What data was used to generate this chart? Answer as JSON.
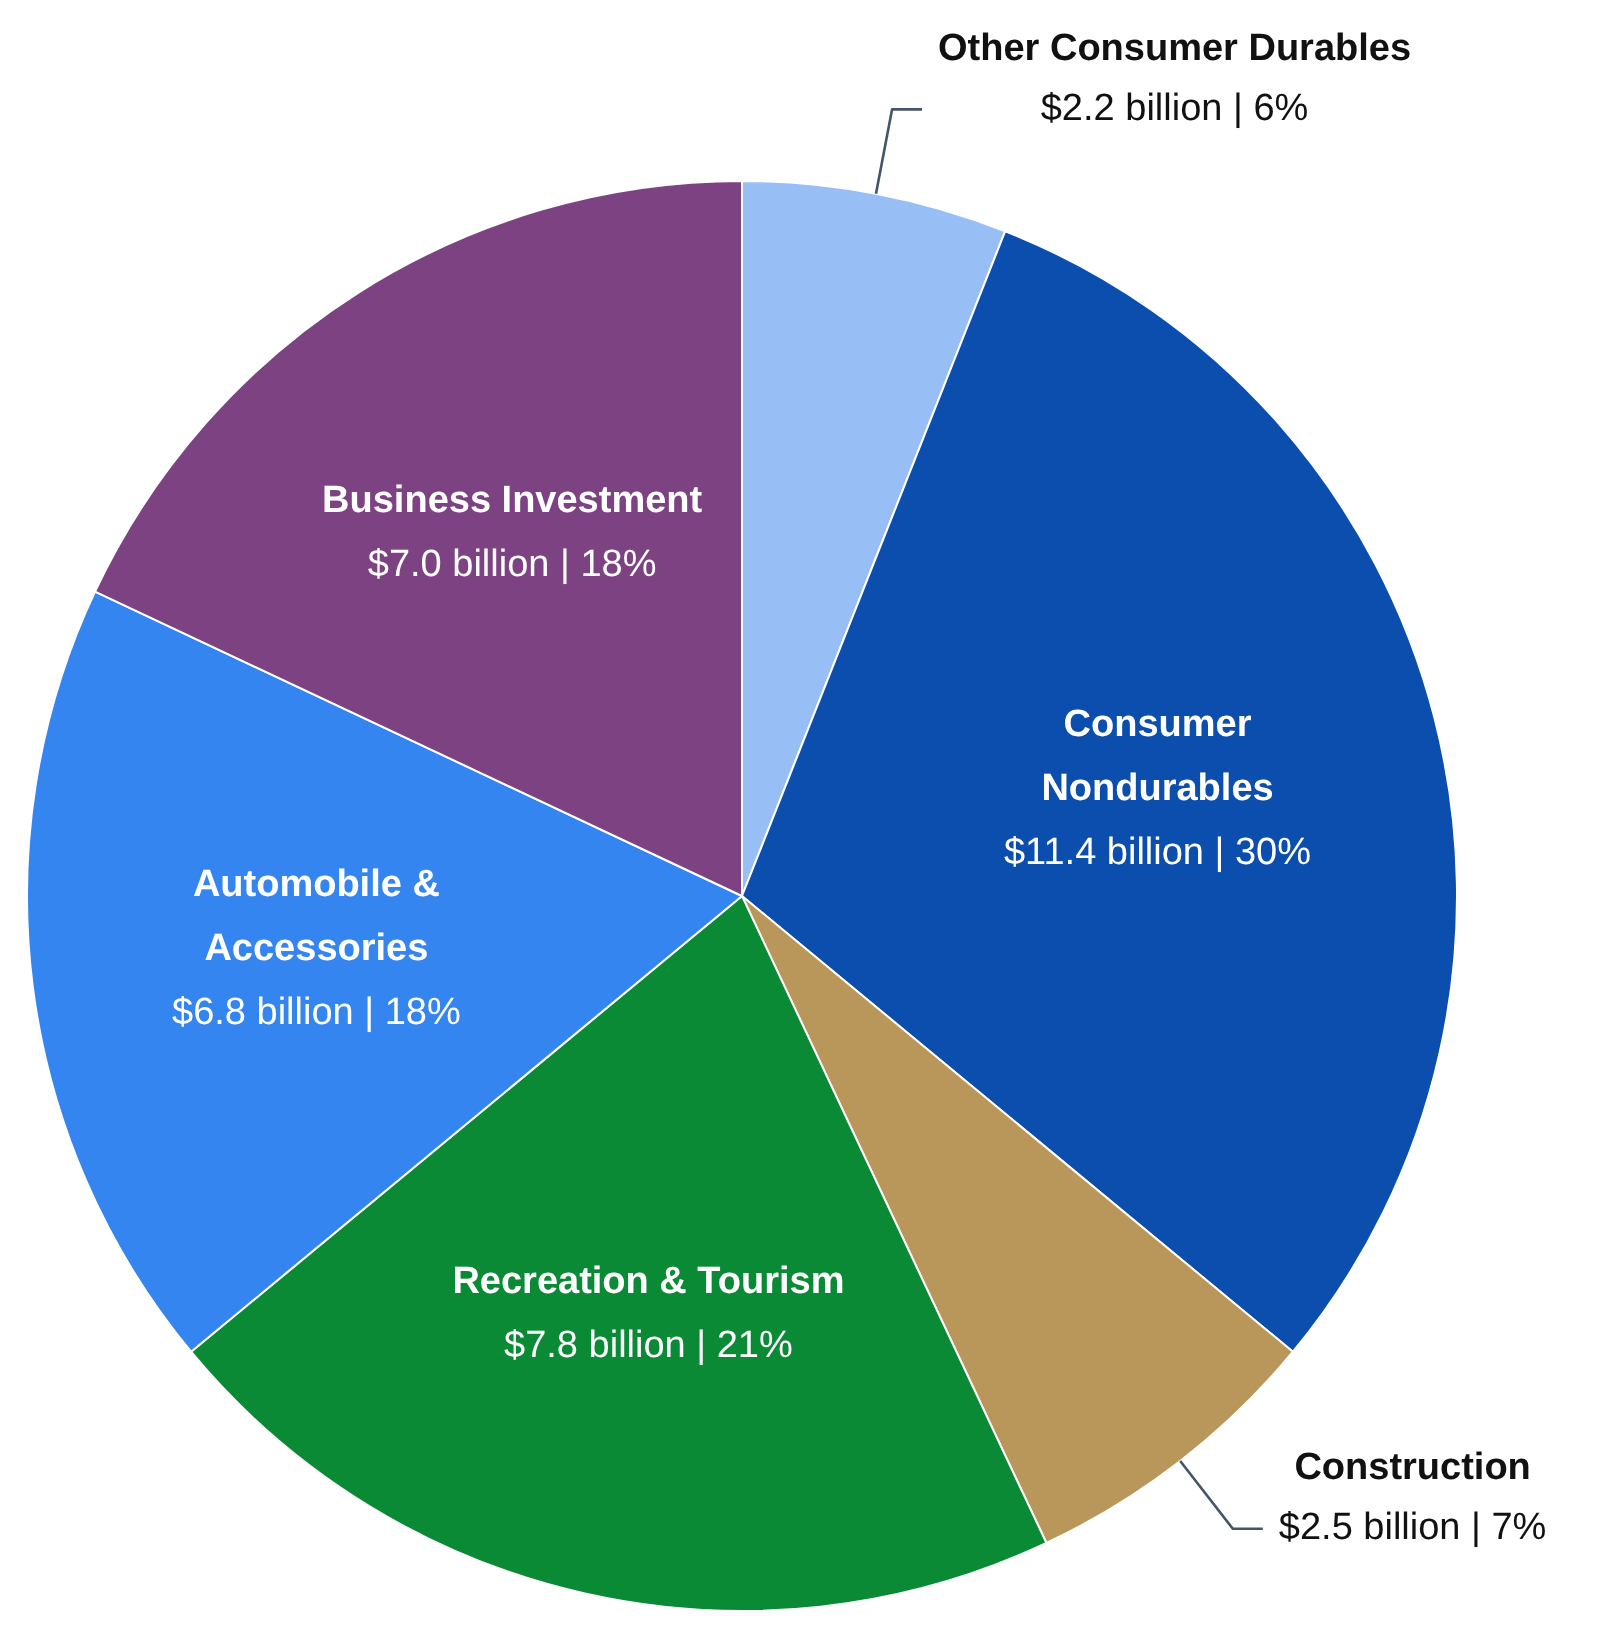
{
  "chart_data": {
    "type": "pie",
    "categories": [
      "Other Consumer Durables",
      "Consumer Nondurables",
      "Construction",
      "Recreation & Tourism",
      "Automobile & Accessories",
      "Business Investment"
    ],
    "values": [
      6,
      30,
      7,
      21,
      18,
      18
    ],
    "value_labels": [
      "$2.2 billion | 6%",
      "$11.4 billion | 30%",
      "$2.5 billion | 7%",
      "$7.8 billion | 21%",
      "$6.8 billion | 18%",
      "$7.0 billion | 18%"
    ],
    "colors": [
      "#98bff5",
      "#0c4ead",
      "#b9975b",
      "#0a8a35",
      "#3485f0",
      "#7d4282"
    ],
    "legend": false
  }
}
